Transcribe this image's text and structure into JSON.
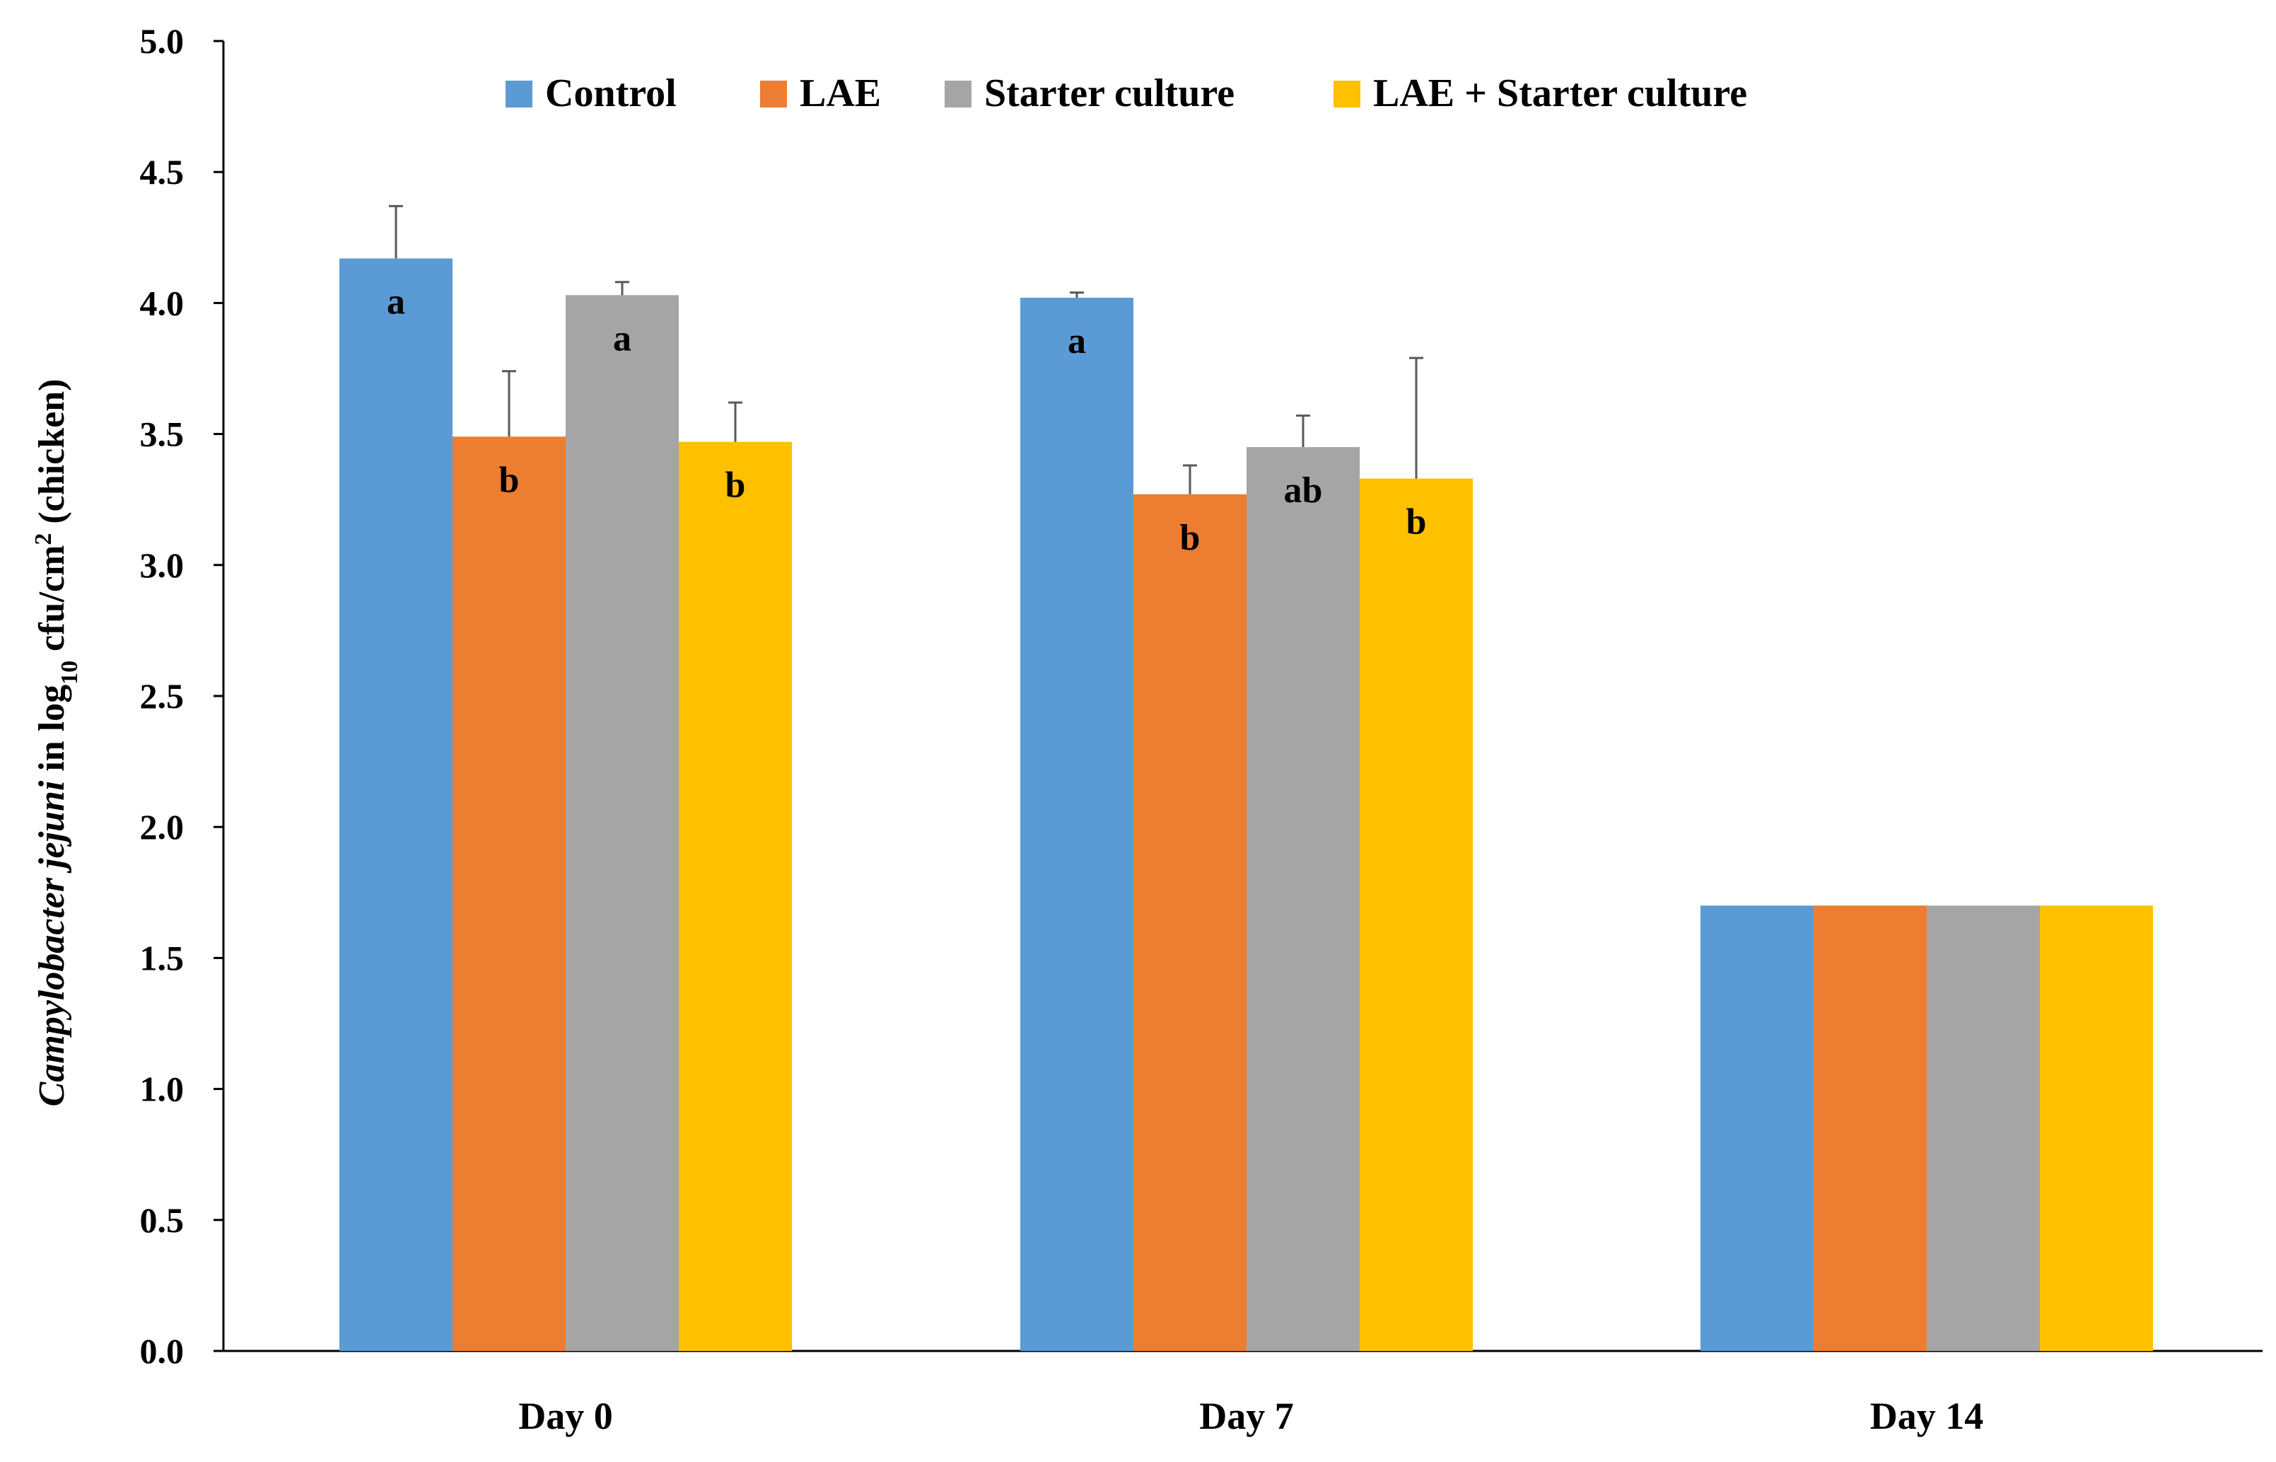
{
  "chart_data": {
    "type": "bar",
    "title": "",
    "xlabel": "",
    "ylabel": {
      "italic_part": "Campylobacter jejuni",
      "part1": " in log",
      "subscript": "10",
      "part2": " cfu/cm",
      "superscript": "2",
      "part3": " (chicken)"
    },
    "categories": [
      "Day 0",
      "Day 7",
      "Day 14"
    ],
    "ylim": [
      0,
      5
    ],
    "yticks": [
      "0.0",
      "0.5",
      "1.0",
      "1.5",
      "2.0",
      "2.5",
      "3.0",
      "3.5",
      "4.0",
      "4.5",
      "5.0"
    ],
    "ytick_values": [
      0,
      0.5,
      1,
      1.5,
      2,
      2.5,
      3,
      3.5,
      4,
      4.5,
      5
    ],
    "grid": false,
    "legend_position": "top",
    "series": [
      {
        "name": "Control",
        "color": "#5B9BD5",
        "values": [
          4.17,
          4.02,
          1.7
        ],
        "errors": [
          0.2,
          0.02,
          null
        ],
        "letters": [
          "a",
          "a",
          ""
        ]
      },
      {
        "name": "LAE",
        "color": "#ED7D31",
        "values": [
          3.49,
          3.27,
          1.7
        ],
        "errors": [
          0.25,
          0.11,
          null
        ],
        "letters": [
          "b",
          "b",
          ""
        ]
      },
      {
        "name": "Starter culture",
        "color": "#A5A5A5",
        "values": [
          4.03,
          3.45,
          1.7
        ],
        "errors": [
          0.05,
          0.12,
          null
        ],
        "letters": [
          "a",
          "ab",
          ""
        ]
      },
      {
        "name": "LAE + Starter culture",
        "color": "#FFC000",
        "values": [
          3.47,
          3.33,
          1.7
        ],
        "errors": [
          0.15,
          0.46,
          null
        ],
        "letters": [
          "b",
          "b",
          ""
        ]
      }
    ]
  }
}
